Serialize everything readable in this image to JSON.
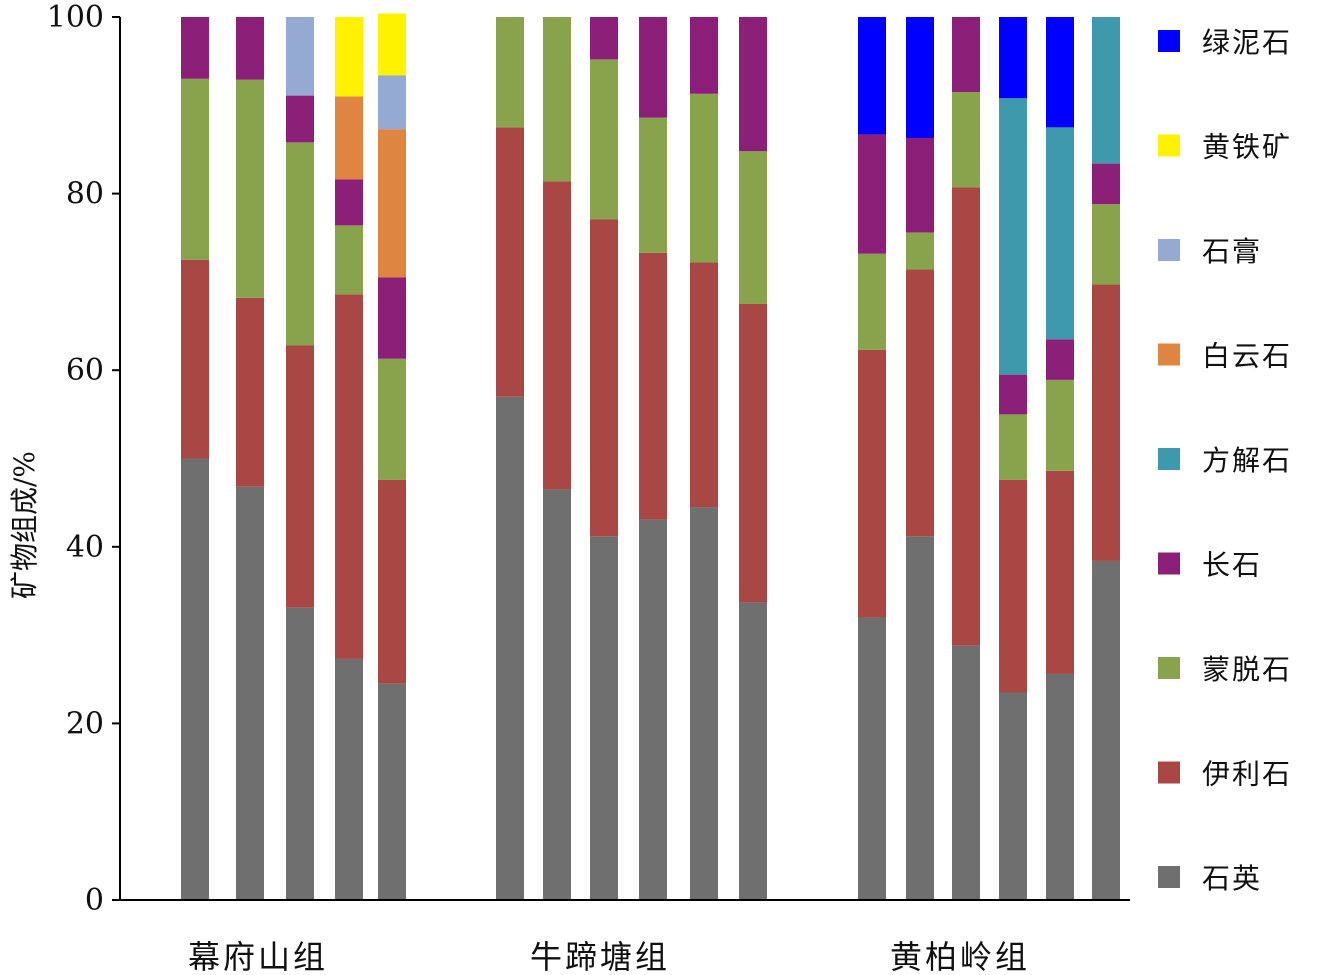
{
  "chart_data": {
    "type": "bar",
    "stacked": true,
    "title": "",
    "xlabel": "",
    "ylabel": "矿物组成/%",
    "ylim": [
      0,
      100
    ],
    "yticks": [
      0,
      20,
      40,
      60,
      80,
      100
    ],
    "grid": false,
    "legend_position": "right",
    "groups": [
      {
        "name": "幕府山组",
        "samples": 5
      },
      {
        "name": "牛蹄塘组",
        "samples": 6
      },
      {
        "name": "黄柏岭组",
        "samples": 6
      }
    ],
    "series": [
      {
        "name": "石英",
        "color": "#6f6f6f",
        "values": [
          50,
          46.8,
          33.1,
          27.3,
          24.5,
          57,
          46.5,
          41.2,
          43.1,
          44.5,
          33.7,
          32,
          41.2,
          28.8,
          23.5,
          25.6,
          38.4
        ]
      },
      {
        "name": "伊利石",
        "color": "#a94745",
        "values": [
          22.5,
          21.4,
          29.7,
          41.3,
          23.1,
          30.5,
          34.9,
          35.9,
          30.2,
          27.7,
          33.8,
          30.3,
          30.2,
          51.9,
          24.1,
          23,
          31.3
        ]
      },
      {
        "name": "蒙脱石",
        "color": "#89a34d",
        "values": [
          20.5,
          24.7,
          23,
          7.8,
          13.7,
          12.5,
          18.6,
          18.1,
          15.3,
          19.1,
          17.3,
          10.9,
          4.2,
          10.8,
          7.4,
          10.3,
          9.1
        ]
      },
      {
        "name": "长石",
        "color": "#8c1f78",
        "values": [
          7,
          7.1,
          5.3,
          5.2,
          9.2,
          0,
          0,
          4.8,
          11.4,
          8.7,
          15.2,
          13.5,
          10.7,
          8.5,
          4.5,
          4.6,
          4.6
        ]
      },
      {
        "name": "方解石",
        "color": "#3f99ad",
        "values": [
          0,
          0,
          0,
          0,
          0,
          0,
          0,
          0,
          0,
          0,
          0,
          0,
          0,
          0,
          31.3,
          24,
          16.6
        ]
      },
      {
        "name": "白云石",
        "color": "#de8641",
        "values": [
          0,
          0,
          0,
          9.4,
          16.8,
          0,
          0,
          0,
          0,
          0,
          0,
          0,
          0,
          0,
          0,
          0,
          0
        ]
      },
      {
        "name": "石膏",
        "color": "#94aad3",
        "values": [
          0,
          0,
          8.9,
          0,
          6.1,
          0,
          0,
          0,
          0,
          0,
          0,
          0,
          0,
          0,
          0,
          0,
          0
        ]
      },
      {
        "name": "黄铁矿",
        "color": "#fff200",
        "values": [
          0,
          0,
          0,
          9,
          7,
          0,
          0,
          0,
          0,
          0,
          0,
          0,
          0,
          0,
          0,
          0,
          0
        ]
      },
      {
        "name": "绿泥石",
        "color": "#0000ff",
        "values": [
          0,
          0,
          0,
          0,
          0,
          0,
          0,
          0,
          0,
          0,
          0,
          13.3,
          13.7,
          0,
          9.2,
          12.5,
          0
        ]
      }
    ],
    "legend_order": [
      "绿泥石",
      "黄铁矿",
      "石膏",
      "白云石",
      "方解石",
      "长石",
      "蒙脱石",
      "伊利石",
      "石英"
    ]
  }
}
